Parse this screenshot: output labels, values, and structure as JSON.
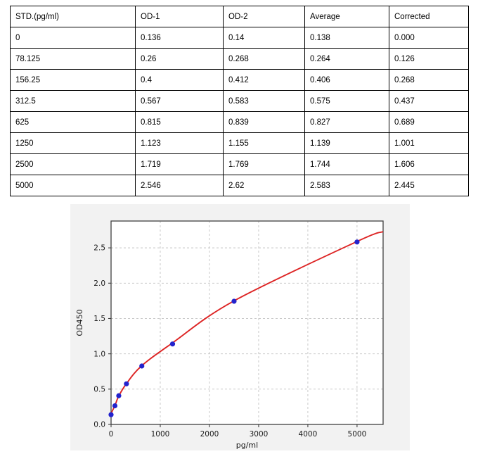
{
  "table": {
    "columns": [
      "STD.(pg/ml)",
      "OD-1",
      "OD-2",
      "Average",
      "Corrected"
    ],
    "rows": [
      [
        "0",
        "0.136",
        "0.14",
        "0.138",
        "0.000"
      ],
      [
        "78.125",
        "0.26",
        "0.268",
        "0.264",
        "0.126"
      ],
      [
        "156.25",
        "0.4",
        "0.412",
        "0.406",
        "0.268"
      ],
      [
        "312.5",
        "0.567",
        "0.583",
        "0.575",
        "0.437"
      ],
      [
        "625",
        "0.815",
        "0.839",
        "0.827",
        "0.689"
      ],
      [
        "1250",
        "1.123",
        "1.155",
        "1.139",
        "1.001"
      ],
      [
        "2500",
        "1.719",
        "1.769",
        "1.744",
        "1.606"
      ],
      [
        "5000",
        "2.546",
        "2.62",
        "2.583",
        "2.445"
      ]
    ]
  },
  "chart_data": {
    "type": "scatter",
    "title": "",
    "xlabel": "pg/ml",
    "ylabel": "OD450",
    "x": [
      0,
      78.125,
      156.25,
      312.5,
      625,
      1250,
      2500,
      5000
    ],
    "y": [
      0.138,
      0.264,
      0.406,
      0.575,
      0.827,
      1.139,
      1.744,
      2.583
    ],
    "xlim": [
      0,
      5530
    ],
    "ylim": [
      0,
      2.88
    ],
    "xticks": [
      0,
      1000,
      2000,
      3000,
      4000,
      5000
    ],
    "xtick_labels": [
      "0",
      "1000",
      "2000",
      "3000",
      "4000",
      "5000"
    ],
    "yticks": [
      0,
      0.5,
      1.0,
      1.5,
      2.0,
      2.5
    ],
    "ytick_labels": [
      "0.0",
      "0.5",
      "1.0",
      "1.5",
      "2.0",
      "2.5"
    ],
    "grid": true,
    "legend": "none",
    "fit_curve_anchors": [
      [
        0,
        0.155
      ],
      [
        78.125,
        0.268
      ],
      [
        156.25,
        0.402
      ],
      [
        312.5,
        0.578
      ],
      [
        625,
        0.832
      ],
      [
        1250,
        1.155
      ],
      [
        2500,
        1.75
      ],
      [
        5000,
        2.59
      ],
      [
        5530,
        2.73
      ]
    ],
    "colors": {
      "point": "#2323cd",
      "curve": "#dd2424",
      "figure_bg": "#f2f2f2",
      "plot_bg": "#ffffff",
      "grid": "#c3c3c3",
      "spine": "#3f3f3f",
      "tick_text": "#1a1a1a"
    }
  }
}
